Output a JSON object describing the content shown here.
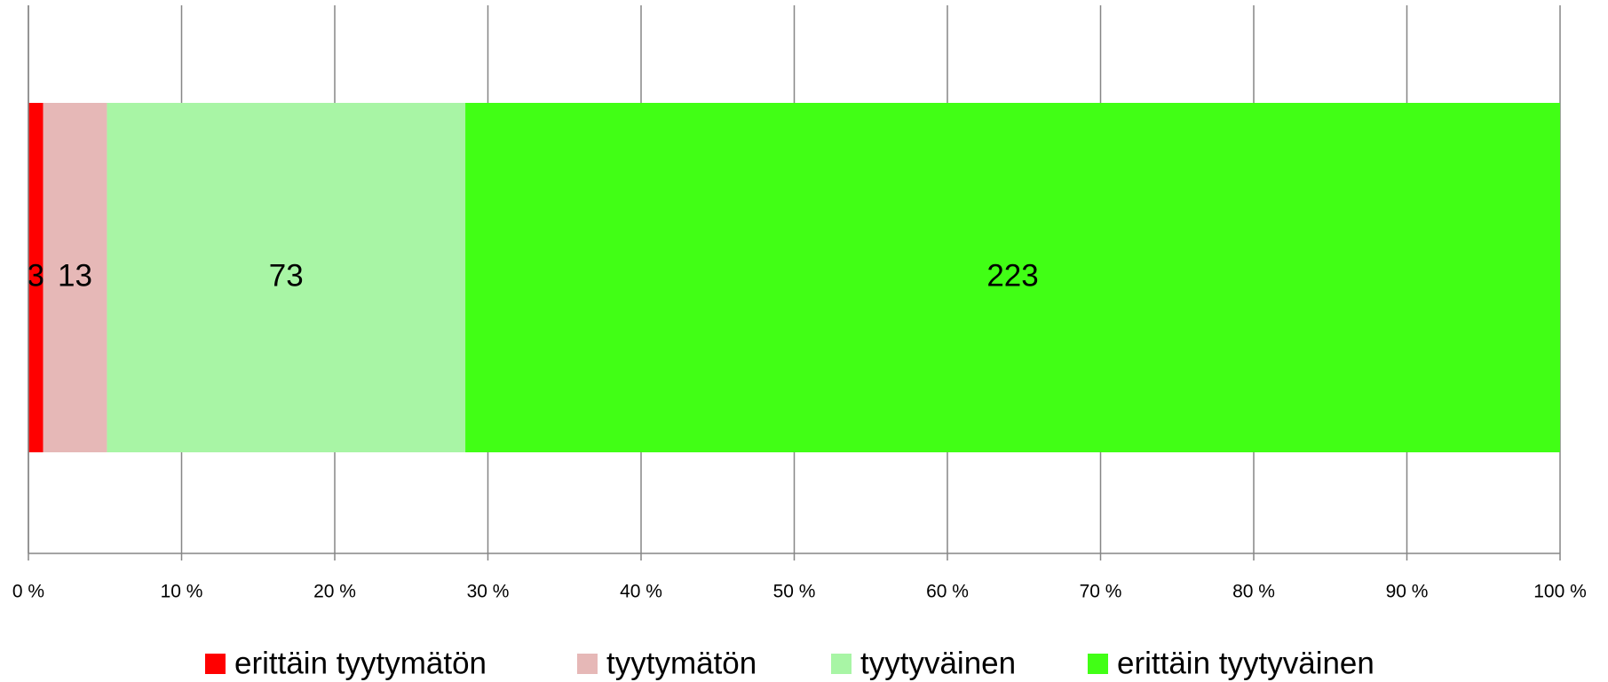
{
  "chart_data": {
    "type": "bar",
    "orientation": "horizontal",
    "stacking": "percent",
    "categories": [
      null
    ],
    "series": [
      {
        "name": "erittäin tyytymätön",
        "color": "#ff0000",
        "values": [
          3
        ]
      },
      {
        "name": "tyytymätön",
        "color": "#e6b8b7",
        "values": [
          13
        ]
      },
      {
        "name": "tyytyväinen",
        "color": "#a8f5a5",
        "values": [
          73
        ]
      },
      {
        "name": "erittäin tyytyväinen",
        "color": "#41ff15",
        "values": [
          223
        ]
      }
    ],
    "xlim": [
      0,
      100
    ],
    "xticks": [
      {
        "value": 0,
        "label": "0 %"
      },
      {
        "value": 10,
        "label": "10 %"
      },
      {
        "value": 20,
        "label": "20 %"
      },
      {
        "value": 30,
        "label": "30 %"
      },
      {
        "value": 40,
        "label": "40 %"
      },
      {
        "value": 50,
        "label": "50 %"
      },
      {
        "value": 60,
        "label": "60 %"
      },
      {
        "value": 70,
        "label": "70 %"
      },
      {
        "value": 80,
        "label": "80 %"
      },
      {
        "value": 90,
        "label": "90 %"
      },
      {
        "value": 100,
        "label": "100 %"
      }
    ],
    "grid": true,
    "legend": "bottom"
  }
}
